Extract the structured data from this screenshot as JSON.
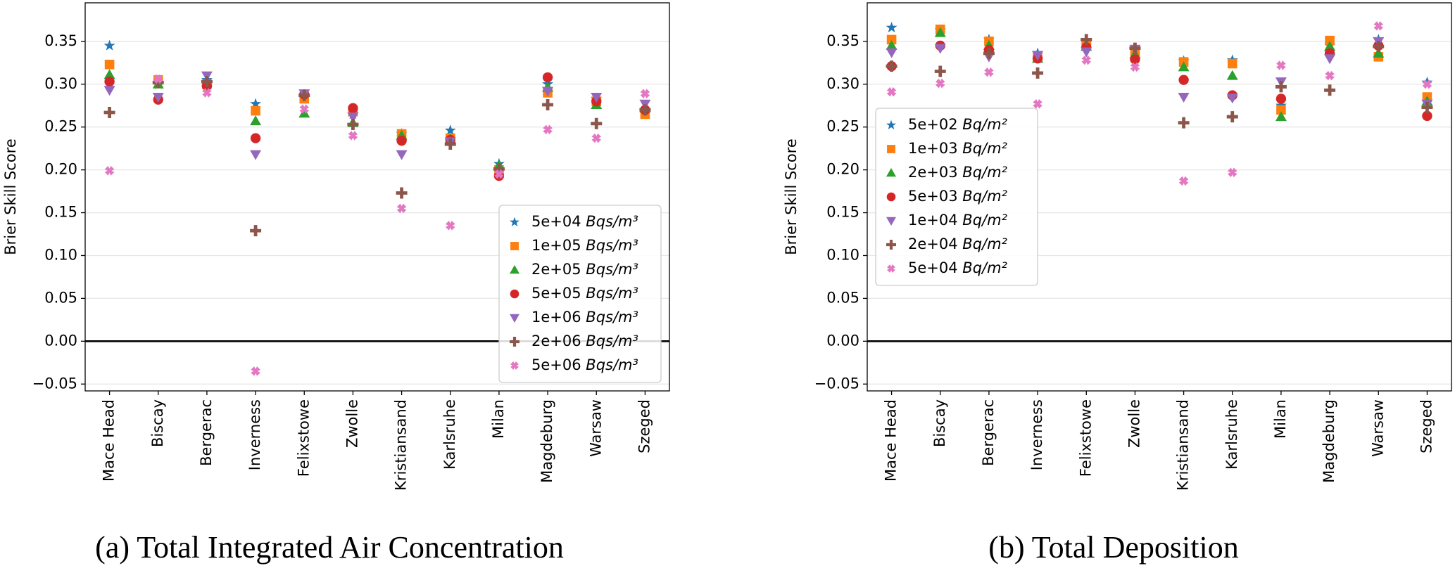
{
  "chart_data": [
    {
      "type": "scatter",
      "caption": "(a) Total Integrated Air Concentration",
      "y_label": "Brier Skill Score",
      "categories": [
        "Mace Head",
        "Biscay",
        "Bergerac",
        "Inverness",
        "Felixstowe",
        "Zwolle",
        "Kristiansand",
        "Karlsruhe",
        "Milan",
        "Magdeburg",
        "Warsaw",
        "Szeged"
      ],
      "series": [
        {
          "name": "5e+04 Bqs/m³",
          "color": "#1f77b4",
          "marker": "star",
          "values": [
            0.345,
            0.3,
            0.305,
            0.277,
            0.285,
            0.265,
            0.242,
            0.246,
            0.207,
            0.3,
            0.283,
            0.27
          ]
        },
        {
          "name": "1e+05 Bqs/m³",
          "color": "#ff7f0e",
          "marker": "square",
          "values": [
            0.323,
            0.305,
            0.3,
            0.269,
            0.283,
            0.268,
            0.242,
            0.237,
            0.2,
            0.29,
            0.28,
            0.265
          ]
        },
        {
          "name": "2e+05 Bqs/m³",
          "color": "#2ca02c",
          "marker": "triangle-up",
          "values": [
            0.311,
            0.3,
            0.302,
            0.257,
            0.266,
            0.255,
            0.24,
            0.236,
            0.205,
            0.296,
            0.276,
            0.272
          ]
        },
        {
          "name": "5e+05 Bqs/m³",
          "color": "#d62728",
          "marker": "circle",
          "values": [
            0.303,
            0.282,
            0.298,
            0.237,
            0.288,
            0.272,
            0.234,
            0.235,
            0.193,
            0.308,
            0.28,
            0.27
          ]
        },
        {
          "name": "1e+06 Bqs/m³",
          "color": "#9467bd",
          "marker": "triangle-down",
          "values": [
            0.293,
            0.285,
            0.31,
            0.218,
            0.289,
            0.262,
            0.218,
            0.233,
            0.198,
            0.292,
            0.285,
            0.277
          ]
        },
        {
          "name": "2e+06 Bqs/m³",
          "color": "#8c564b",
          "marker": "plus",
          "values": [
            0.267,
            0.302,
            0.303,
            0.129,
            0.287,
            0.253,
            0.173,
            0.23,
            0.201,
            0.276,
            0.254,
            0.27
          ]
        },
        {
          "name": "5e+06 Bqs/m³",
          "color": "#e377c2",
          "marker": "x",
          "values": [
            0.199,
            0.306,
            0.29,
            -0.035,
            0.271,
            0.24,
            0.155,
            0.135,
            0.195,
            0.247,
            0.237,
            0.289
          ]
        }
      ],
      "ylim": [
        -0.058,
        0.395
      ],
      "yticks": [
        {
          "value": -0.05,
          "label": "−0.05"
        },
        {
          "value": 0,
          "label": "0.00"
        },
        0.05,
        {
          "value": 0.1,
          "label": "0.10"
        },
        0.15,
        {
          "value": 0.2,
          "label": "0.20"
        },
        0.25,
        {
          "value": 0.3,
          "label": "0.30"
        },
        0.35
      ],
      "grid": true,
      "hline": 0,
      "legend": "lower right"
    },
    {
      "type": "scatter",
      "caption": "(b) Total Deposition",
      "y_label": "Brier Skill Score",
      "categories": [
        "Mace Head",
        "Biscay",
        "Bergerac",
        "Inverness",
        "Felixstowe",
        "Zwolle",
        "Kristiansand",
        "Karlsruhe",
        "Milan",
        "Magdeburg",
        "Warsaw",
        "Szeged"
      ],
      "series": [
        {
          "name": "5e+02 Bq/m²",
          "color": "#1f77b4",
          "marker": "star",
          "values": [
            0.366,
            0.363,
            0.352,
            0.336,
            0.345,
            0.34,
            0.327,
            0.328,
            0.275,
            0.345,
            0.352,
            0.302
          ]
        },
        {
          "name": "1e+03 Bq/m²",
          "color": "#ff7f0e",
          "marker": "square",
          "values": [
            0.352,
            0.364,
            0.35,
            0.333,
            0.348,
            0.338,
            0.326,
            0.324,
            0.27,
            0.351,
            0.332,
            0.285
          ]
        },
        {
          "name": "2e+03 Bq/m²",
          "color": "#2ca02c",
          "marker": "triangle-up",
          "values": [
            0.345,
            0.36,
            0.345,
            0.33,
            0.344,
            0.335,
            0.32,
            0.31,
            0.262,
            0.344,
            0.336,
            0.28
          ]
        },
        {
          "name": "5e+03 Bq/m²",
          "color": "#d62728",
          "marker": "circle",
          "values": [
            0.321,
            0.345,
            0.34,
            0.33,
            0.343,
            0.329,
            0.305,
            0.287,
            0.283,
            0.336,
            0.345,
            0.263
          ]
        },
        {
          "name": "1e+04 Bq/m²",
          "color": "#9467bd",
          "marker": "triangle-down",
          "values": [
            0.337,
            0.342,
            0.332,
            0.334,
            0.338,
            0.341,
            0.285,
            0.284,
            0.303,
            0.33,
            0.35,
            0.277
          ]
        },
        {
          "name": "2e+04 Bq/m²",
          "color": "#8c564b",
          "marker": "plus",
          "values": [
            0.321,
            0.315,
            0.336,
            0.313,
            0.352,
            0.342,
            0.255,
            0.262,
            0.297,
            0.293,
            0.344,
            0.273
          ]
        },
        {
          "name": "5e+04 Bq/m²",
          "color": "#e377c2",
          "marker": "x",
          "values": [
            0.291,
            0.301,
            0.314,
            0.277,
            0.328,
            0.32,
            0.187,
            0.197,
            0.322,
            0.31,
            0.368,
            0.3
          ]
        }
      ],
      "ylim": [
        -0.058,
        0.395
      ],
      "yticks": [
        {
          "value": -0.05,
          "label": "−0.05"
        },
        {
          "value": 0,
          "label": "0.00"
        },
        0.05,
        {
          "value": 0.1,
          "label": "0.10"
        },
        0.15,
        {
          "value": 0.2,
          "label": "0.20"
        },
        0.25,
        {
          "value": 0.3,
          "label": "0.30"
        },
        0.35
      ],
      "grid": true,
      "hline": 0,
      "legend": "center left"
    }
  ]
}
